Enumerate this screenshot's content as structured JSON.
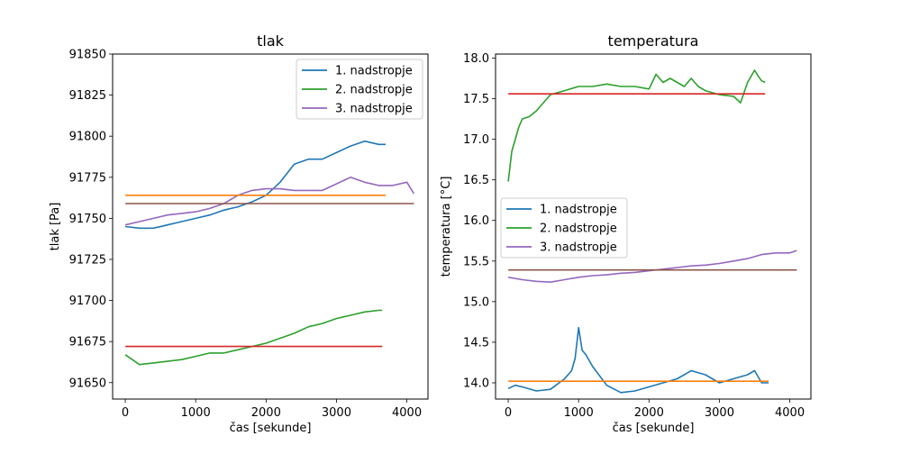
{
  "chart_data": [
    {
      "type": "line",
      "title": "tlak",
      "xlabel": "čas [sekunde]",
      "ylabel": "tlak [Pa]",
      "xlim": [
        -180,
        4300
      ],
      "ylim": [
        91640,
        91850
      ],
      "xticks": [
        0,
        1000,
        2000,
        3000,
        4000
      ],
      "yticks": [
        91650,
        91675,
        91700,
        91725,
        91750,
        91775,
        91800,
        91825,
        91850
      ],
      "legend": "top-right",
      "grid": false,
      "series": [
        {
          "name": "1. nadstropje",
          "color": "#1f77b4",
          "x": [
            0,
            200,
            400,
            600,
            800,
            1000,
            1200,
            1400,
            1600,
            1800,
            2000,
            2200,
            2400,
            2600,
            2800,
            3000,
            3200,
            3400,
            3600,
            3700
          ],
          "y": [
            91745,
            91744,
            91744,
            91746,
            91748,
            91750,
            91752,
            91755,
            91757,
            91760,
            91764,
            91772,
            91783,
            91786,
            91786,
            91790,
            91794,
            91797,
            91795,
            91795
          ]
        },
        {
          "name": "2. nadstropje",
          "color": "#2ca02c",
          "x": [
            0,
            200,
            400,
            600,
            800,
            1000,
            1200,
            1400,
            1600,
            1800,
            2000,
            2200,
            2400,
            2600,
            2800,
            3000,
            3200,
            3400,
            3600,
            3650
          ],
          "y": [
            91667,
            91661,
            91662,
            91663,
            91664,
            91666,
            91668,
            91668,
            91670,
            91672,
            91674,
            91677,
            91680,
            91684,
            91686,
            91689,
            91691,
            91693,
            91694,
            91694
          ]
        },
        {
          "name": "3. nadstropje",
          "color": "#9467bd",
          "x": [
            0,
            200,
            400,
            600,
            800,
            1000,
            1200,
            1400,
            1600,
            1800,
            2000,
            2200,
            2400,
            2600,
            2800,
            3000,
            3200,
            3400,
            3600,
            3800,
            4000,
            4100
          ],
          "y": [
            91746,
            91748,
            91750,
            91752,
            91753,
            91754,
            91756,
            91759,
            91764,
            91767,
            91768,
            91768,
            91767,
            91767,
            91767,
            91771,
            91775,
            91772,
            91770,
            91770,
            91772,
            91765
          ]
        },
        {
          "name": "",
          "color": "#ff7f0e",
          "x": [
            0,
            3700
          ],
          "y": [
            91764,
            91764
          ]
        },
        {
          "name": "",
          "color": "#d62728",
          "x": [
            0,
            3650
          ],
          "y": [
            91672,
            91672
          ]
        },
        {
          "name": "",
          "color": "#8c564b",
          "x": [
            0,
            4100
          ],
          "y": [
            91759,
            91759
          ]
        }
      ]
    },
    {
      "type": "line",
      "title": "temperatura",
      "xlabel": "čas [sekunde]",
      "ylabel": "temperatura [°C]",
      "xlim": [
        -180,
        4300
      ],
      "ylim": [
        13.8,
        18.05
      ],
      "xticks": [
        0,
        1000,
        2000,
        3000,
        4000
      ],
      "yticks": [
        "14.0",
        "14.5",
        "15.0",
        "15.5",
        "16.0",
        "16.5",
        "17.0",
        "17.5",
        "18.0"
      ],
      "legend": "center-left",
      "grid": false,
      "series": [
        {
          "name": "1. nadstropje",
          "color": "#1f77b4",
          "x": [
            0,
            100,
            200,
            400,
            600,
            800,
            900,
            950,
            1000,
            1050,
            1100,
            1200,
            1400,
            1600,
            1800,
            2000,
            2200,
            2400,
            2600,
            2800,
            3000,
            3200,
            3400,
            3500,
            3600,
            3700
          ],
          "y": [
            13.93,
            13.97,
            13.95,
            13.9,
            13.92,
            14.05,
            14.15,
            14.3,
            14.68,
            14.4,
            14.35,
            14.2,
            13.97,
            13.88,
            13.9,
            13.95,
            14.0,
            14.05,
            14.15,
            14.1,
            14.0,
            14.05,
            14.1,
            14.15,
            14.0,
            14.0
          ]
        },
        {
          "name": "2. nadstropje",
          "color": "#2ca02c",
          "x": [
            0,
            50,
            100,
            150,
            200,
            300,
            400,
            500,
            600,
            800,
            1000,
            1200,
            1400,
            1600,
            1800,
            2000,
            2100,
            2200,
            2300,
            2500,
            2600,
            2700,
            2800,
            3000,
            3200,
            3300,
            3400,
            3500,
            3550,
            3600,
            3650
          ],
          "y": [
            16.48,
            16.85,
            17.0,
            17.15,
            17.25,
            17.28,
            17.35,
            17.45,
            17.55,
            17.6,
            17.65,
            17.65,
            17.68,
            17.65,
            17.65,
            17.62,
            17.8,
            17.7,
            17.75,
            17.65,
            17.75,
            17.65,
            17.6,
            17.55,
            17.53,
            17.45,
            17.7,
            17.85,
            17.78,
            17.72,
            17.7
          ]
        },
        {
          "name": "3. nadstropje",
          "color": "#9467bd",
          "x": [
            0,
            200,
            400,
            600,
            800,
            1000,
            1200,
            1400,
            1600,
            1800,
            2000,
            2200,
            2400,
            2600,
            2800,
            3000,
            3200,
            3400,
            3600,
            3800,
            4000,
            4100
          ],
          "y": [
            15.3,
            15.27,
            15.25,
            15.24,
            15.27,
            15.3,
            15.32,
            15.33,
            15.35,
            15.36,
            15.38,
            15.4,
            15.42,
            15.44,
            15.45,
            15.47,
            15.5,
            15.53,
            15.58,
            15.6,
            15.6,
            15.63
          ]
        },
        {
          "name": "",
          "color": "#ff7f0e",
          "x": [
            0,
            3700
          ],
          "y": [
            14.02,
            14.02
          ]
        },
        {
          "name": "",
          "color": "#d62728",
          "x": [
            0,
            3650
          ],
          "y": [
            17.56,
            17.56
          ]
        },
        {
          "name": "",
          "color": "#8c564b",
          "x": [
            0,
            4100
          ],
          "y": [
            15.39,
            15.39
          ]
        }
      ]
    }
  ]
}
